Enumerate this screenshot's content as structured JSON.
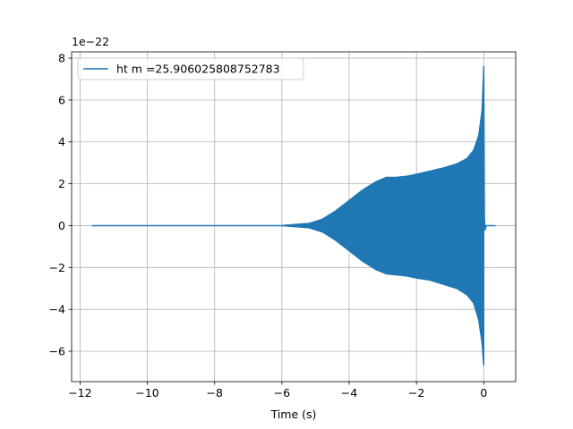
{
  "chart_data": {
    "type": "line",
    "title": "",
    "xlabel": "Time (s)",
    "ylabel": "",
    "y_offset_text": "1e−22",
    "xlim": [
      -12.25,
      0.95
    ],
    "ylim": [
      -7.45,
      8.3
    ],
    "xticks": [
      -12,
      -10,
      -8,
      -6,
      -4,
      -2,
      0
    ],
    "xtick_labels": [
      "−12",
      "−10",
      "−8",
      "−6",
      "−4",
      "−2",
      "0"
    ],
    "yticks": [
      -6,
      -4,
      -2,
      0,
      2,
      4,
      6,
      8
    ],
    "ytick_labels": [
      "−6",
      "−4",
      "−2",
      "0",
      "2",
      "4",
      "6",
      "8"
    ],
    "grid": true,
    "legend_position": "upper-left",
    "series": [
      {
        "name": "ht m =25.906025808752783",
        "color": "#1f77b4",
        "x_start": -11.65,
        "x_end": 0.35,
        "merger_time": 0.0,
        "envelope": {
          "t": [
            -11.65,
            -6.0,
            -5.2,
            -4.8,
            -4.4,
            -4.0,
            -3.6,
            -3.2,
            -2.9,
            -2.6,
            -2.3,
            -2.0,
            -1.6,
            -1.2,
            -0.8,
            -0.5,
            -0.3,
            -0.15,
            -0.05,
            0.0
          ],
          "upper": [
            0.0,
            0.0,
            0.1,
            0.3,
            0.7,
            1.2,
            1.7,
            2.1,
            2.3,
            2.3,
            2.35,
            2.45,
            2.6,
            2.75,
            2.95,
            3.2,
            3.6,
            4.3,
            5.5,
            7.6
          ],
          "lower": [
            0.0,
            0.0,
            -0.1,
            -0.3,
            -0.7,
            -1.2,
            -1.7,
            -2.1,
            -2.3,
            -2.35,
            -2.4,
            -2.5,
            -2.6,
            -2.8,
            -3.0,
            -3.3,
            -3.7,
            -4.5,
            -5.6,
            -6.7
          ]
        }
      }
    ]
  }
}
